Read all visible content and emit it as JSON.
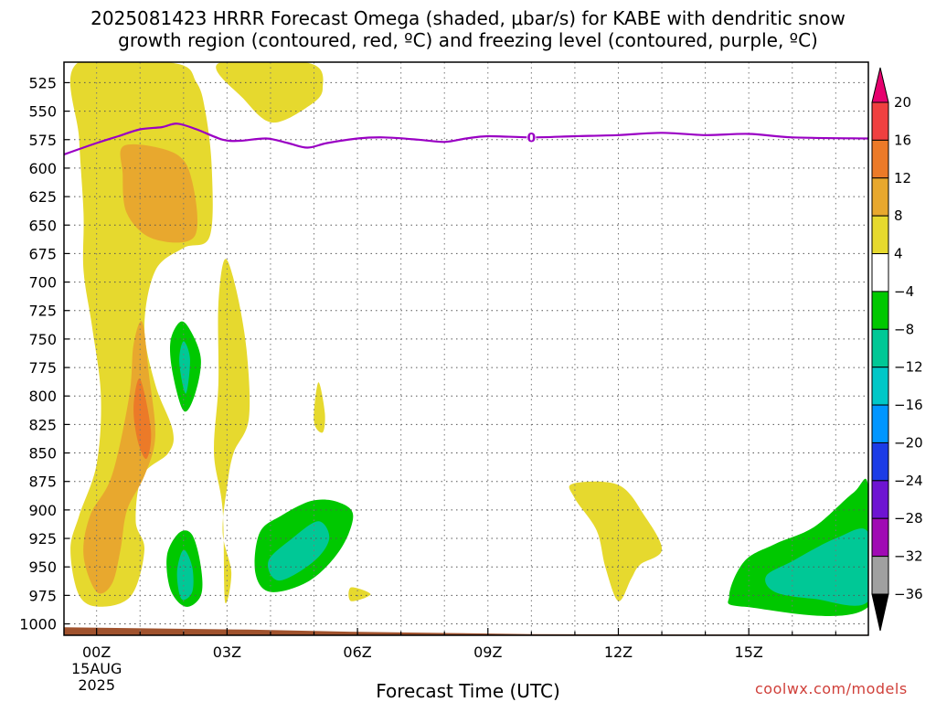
{
  "title": "2025081423 HRRR Forecast Omega (shaded, μbar/s) for KABE with dendritic snow\ngrowth region (contoured, red, ºC) and freezing level (contoured, purple, ºC)",
  "xlabel": "Forecast Time (UTC)",
  "watermark": "coolwx.com/models",
  "chart_data": {
    "type": "heatmap",
    "x_axis": {
      "label": "Forecast Time (UTC)",
      "range_hours": [
        -0.75,
        17.75
      ],
      "ticks": [
        {
          "hour": 0,
          "label": "00Z",
          "sublabels": [
            "15AUG",
            "2025"
          ]
        },
        {
          "hour": 3,
          "label": "03Z"
        },
        {
          "hour": 6,
          "label": "06Z"
        },
        {
          "hour": 9,
          "label": "09Z"
        },
        {
          "hour": 12,
          "label": "12Z"
        },
        {
          "hour": 15,
          "label": "15Z"
        }
      ]
    },
    "y_axis": {
      "type": "pressure",
      "range": [
        507,
        1010
      ],
      "inverted": true,
      "ticks": [
        525,
        550,
        575,
        600,
        625,
        650,
        675,
        700,
        725,
        750,
        775,
        800,
        825,
        850,
        875,
        900,
        925,
        950,
        975,
        1000
      ]
    },
    "grid": true,
    "colorbar": {
      "labels": [
        20,
        16,
        12,
        8,
        4,
        -4,
        -8,
        -12,
        -16,
        -20,
        -24,
        -28,
        -32,
        -36
      ],
      "bins": [
        {
          "from": 20,
          "to": 24,
          "color": "#e6006e"
        },
        {
          "from": 16,
          "to": 20,
          "color": "#f04040"
        },
        {
          "from": 12,
          "to": 16,
          "color": "#ec7a28"
        },
        {
          "from": 8,
          "to": 12,
          "color": "#e8a82e"
        },
        {
          "from": 4,
          "to": 8,
          "color": "#e6d92e"
        },
        {
          "from": -4,
          "to": 4,
          "color": "#ffffff"
        },
        {
          "from": -8,
          "to": -4,
          "color": "#00c800"
        },
        {
          "from": -12,
          "to": -8,
          "color": "#00c896"
        },
        {
          "from": -16,
          "to": -12,
          "color": "#00c8c8"
        },
        {
          "from": -20,
          "to": -16,
          "color": "#0096ff"
        },
        {
          "from": -24,
          "to": -20,
          "color": "#1c3ce6"
        },
        {
          "from": -28,
          "to": -24,
          "color": "#6e14d2"
        },
        {
          "from": -32,
          "to": -28,
          "color": "#a00ab4"
        },
        {
          "from": -36,
          "to": -32,
          "color": "#a0a0a0"
        },
        {
          "from": -40,
          "to": -36,
          "color": "#000000"
        }
      ]
    },
    "omega_regions": [
      {
        "value": 6,
        "color": "#e6d92e",
        "points": [
          [
            -0.45,
            508
          ],
          [
            1.8,
            508
          ],
          [
            2.3,
            525
          ],
          [
            2.5,
            550
          ],
          [
            2.65,
            600
          ],
          [
            2.6,
            660
          ],
          [
            2.0,
            670
          ],
          [
            1.35,
            690
          ],
          [
            1.1,
            740
          ],
          [
            1.35,
            790
          ],
          [
            1.75,
            830
          ],
          [
            1.65,
            850
          ],
          [
            1.05,
            870
          ],
          [
            0.9,
            910
          ],
          [
            1.1,
            935
          ],
          [
            0.8,
            975
          ],
          [
            0.1,
            985
          ],
          [
            -0.4,
            975
          ],
          [
            -0.6,
            935
          ],
          [
            -0.4,
            905
          ],
          [
            0.0,
            860
          ],
          [
            0.1,
            800
          ],
          [
            -0.1,
            740
          ],
          [
            -0.3,
            690
          ],
          [
            -0.3,
            640
          ],
          [
            -0.4,
            575
          ]
        ]
      },
      {
        "value": 6,
        "color": "#e6d92e",
        "points": [
          [
            2.8,
            508
          ],
          [
            4.9,
            508
          ],
          [
            5.2,
            530
          ],
          [
            4.9,
            545
          ],
          [
            4.05,
            560
          ],
          [
            3.4,
            540
          ]
        ]
      },
      {
        "value": 6,
        "color": "#e6d92e",
        "points": [
          [
            2.95,
            680
          ],
          [
            3.2,
            705
          ],
          [
            3.45,
            760
          ],
          [
            3.5,
            820
          ],
          [
            3.15,
            850
          ],
          [
            3.0,
            880
          ],
          [
            2.9,
            920
          ],
          [
            3.1,
            955
          ],
          [
            2.95,
            980
          ],
          [
            2.9,
            900
          ],
          [
            2.7,
            850
          ],
          [
            2.8,
            790
          ],
          [
            2.8,
            720
          ]
        ]
      },
      {
        "value": 6,
        "color": "#e6d92e",
        "points": [
          [
            5.1,
            788
          ],
          [
            5.25,
            815
          ],
          [
            5.2,
            832
          ],
          [
            5.0,
            822
          ]
        ]
      },
      {
        "value": 6,
        "color": "#e6d92e",
        "points": [
          [
            5.85,
            968
          ],
          [
            6.3,
            974
          ],
          [
            5.85,
            980
          ]
        ]
      },
      {
        "value": 6,
        "color": "#e6d92e",
        "points": [
          [
            10.95,
            877
          ],
          [
            12.0,
            878
          ],
          [
            12.6,
            905
          ],
          [
            13.0,
            935
          ],
          [
            12.5,
            948
          ],
          [
            12.3,
            960
          ],
          [
            12.0,
            980
          ],
          [
            11.7,
            950
          ],
          [
            11.5,
            918
          ],
          [
            11.0,
            890
          ]
        ]
      },
      {
        "value": 10,
        "color": "#e8a82e",
        "points": [
          [
            0.65,
            580
          ],
          [
            1.8,
            587
          ],
          [
            2.2,
            612
          ],
          [
            2.25,
            660
          ],
          [
            1.3,
            662
          ],
          [
            0.7,
            640
          ],
          [
            0.6,
            605
          ]
        ]
      },
      {
        "value": 10,
        "color": "#e8a82e",
        "points": [
          [
            1.05,
            735
          ],
          [
            1.2,
            780
          ],
          [
            1.35,
            835
          ],
          [
            1.1,
            870
          ],
          [
            0.7,
            900
          ],
          [
            0.55,
            935
          ],
          [
            0.35,
            965
          ],
          [
            0.0,
            972
          ],
          [
            -0.3,
            940
          ],
          [
            -0.15,
            905
          ],
          [
            0.35,
            870
          ],
          [
            0.75,
            800
          ],
          [
            0.85,
            755
          ]
        ]
      },
      {
        "value": 14,
        "color": "#ec7a28",
        "points": [
          [
            1.0,
            785
          ],
          [
            1.25,
            830
          ],
          [
            1.15,
            855
          ],
          [
            0.95,
            840
          ],
          [
            0.85,
            810
          ]
        ]
      },
      {
        "value": -6,
        "color": "#00c800",
        "points": [
          [
            1.92,
            735
          ],
          [
            2.15,
            742
          ],
          [
            2.4,
            768
          ],
          [
            2.25,
            800
          ],
          [
            2.0,
            813
          ],
          [
            1.75,
            780
          ],
          [
            1.7,
            752
          ]
        ]
      },
      {
        "value": -6,
        "color": "#00c800",
        "points": [
          [
            1.9,
            920
          ],
          [
            2.2,
            922
          ],
          [
            2.4,
            950
          ],
          [
            2.4,
            975
          ],
          [
            2.05,
            985
          ],
          [
            1.7,
            970
          ],
          [
            1.62,
            940
          ]
        ]
      },
      {
        "value": -6,
        "color": "#00c800",
        "points": [
          [
            4.95,
            892
          ],
          [
            5.55,
            893
          ],
          [
            5.9,
            905
          ],
          [
            5.6,
            935
          ],
          [
            4.9,
            962
          ],
          [
            4.0,
            972
          ],
          [
            3.65,
            955
          ],
          [
            3.75,
            920
          ],
          [
            4.25,
            905
          ]
        ]
      },
      {
        "value": -6,
        "color": "#00c800",
        "points": [
          [
            17.75,
            880
          ],
          [
            17.4,
            885
          ],
          [
            16.5,
            915
          ],
          [
            15.6,
            930
          ],
          [
            14.9,
            945
          ],
          [
            14.55,
            975
          ],
          [
            14.9,
            985
          ],
          [
            17.75,
            985
          ]
        ]
      },
      {
        "value": -10,
        "color": "#00c896",
        "points": [
          [
            2.0,
            752
          ],
          [
            2.15,
            768
          ],
          [
            2.05,
            798
          ],
          [
            1.9,
            770
          ]
        ]
      },
      {
        "value": -10,
        "color": "#00c896",
        "points": [
          [
            2.0,
            935
          ],
          [
            2.2,
            950
          ],
          [
            2.2,
            972
          ],
          [
            1.95,
            978
          ],
          [
            1.85,
            955
          ]
        ]
      },
      {
        "value": -10,
        "color": "#00c896",
        "points": [
          [
            5.1,
            910
          ],
          [
            5.35,
            925
          ],
          [
            5.0,
            945
          ],
          [
            4.2,
            962
          ],
          [
            3.95,
            945
          ],
          [
            4.5,
            925
          ]
        ]
      },
      {
        "value": -10,
        "color": "#00c896",
        "points": [
          [
            17.75,
            920
          ],
          [
            17.0,
            925
          ],
          [
            16.0,
            945
          ],
          [
            15.4,
            958
          ],
          [
            15.6,
            972
          ],
          [
            16.5,
            978
          ],
          [
            17.75,
            980
          ]
        ]
      }
    ],
    "freezing_level": {
      "label": "0",
      "label_hour": 10.0,
      "points": [
        [
          -0.75,
          588
        ],
        [
          0.0,
          578
        ],
        [
          0.5,
          572
        ],
        [
          1.0,
          566
        ],
        [
          1.5,
          564
        ],
        [
          1.85,
          561
        ],
        [
          2.3,
          566
        ],
        [
          2.9,
          575
        ],
        [
          3.3,
          576
        ],
        [
          3.9,
          574
        ],
        [
          4.4,
          578
        ],
        [
          4.85,
          582
        ],
        [
          5.3,
          578
        ],
        [
          6.0,
          574
        ],
        [
          6.6,
          573
        ],
        [
          7.4,
          575
        ],
        [
          8.0,
          577
        ],
        [
          8.5,
          574
        ],
        [
          9.0,
          572
        ],
        [
          10.0,
          573
        ],
        [
          11.0,
          572
        ],
        [
          12.0,
          571
        ],
        [
          13.0,
          569
        ],
        [
          14.0,
          571
        ],
        [
          15.0,
          570
        ],
        [
          16.0,
          573
        ],
        [
          17.75,
          574
        ]
      ]
    },
    "terrain": {
      "points": [
        [
          -0.75,
          1003
        ],
        [
          3.5,
          1005
        ],
        [
          6.0,
          1007
        ],
        [
          8.0,
          1008
        ],
        [
          10.0,
          1009
        ],
        [
          17.75,
          1009.5
        ]
      ]
    }
  }
}
